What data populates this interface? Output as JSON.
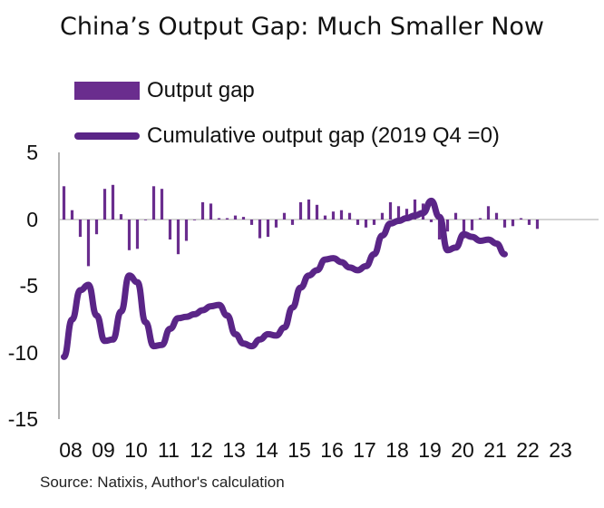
{
  "chart_data": {
    "type": "bar+line",
    "title": "China’s Output Gap: Much Smaller Now",
    "legend": [
      "Output gap",
      "Cumulative output gap (2019 Q4 =0)"
    ],
    "ylim": [
      -15,
      5
    ],
    "yticks": [
      "5",
      "0",
      "-5",
      "-10",
      "-15"
    ],
    "xticks": [
      "08",
      "09",
      "10",
      "11",
      "12",
      "13",
      "14",
      "15",
      "16",
      "17",
      "18",
      "19",
      "20",
      "21",
      "22",
      "23"
    ],
    "x_start_year": 2008,
    "series": [
      {
        "name": "Output gap",
        "type": "bar",
        "values": [
          2.5,
          0.7,
          -1.3,
          -3.5,
          -1.1,
          2.3,
          2.6,
          0.4,
          -2.3,
          -2.2,
          0,
          2.5,
          2.3,
          -1.5,
          -2.6,
          -1.6,
          0,
          1.3,
          1.2,
          0.1,
          0.1,
          0.3,
          0.2,
          -0.4,
          -1.4,
          -1.3,
          -0.6,
          0.5,
          -0.4,
          1.3,
          1.5,
          1.1,
          0.3,
          0.6,
          0.7,
          0.5,
          -0.4,
          -0.6,
          -0.4,
          0.5,
          1.3,
          1.0,
          0.8,
          1.5,
          1.2,
          -0.2,
          -1.5,
          -0.9,
          0.5,
          -1.4,
          -0.8,
          0.1,
          1.0,
          0.5,
          -0.6,
          -0.5,
          0.1,
          -0.4,
          -0.7
        ],
        "color": "#6a2d8e"
      },
      {
        "name": "Cumulative output gap (2019 Q4 =0)",
        "type": "line",
        "values": [
          -10.3,
          -7.5,
          -5.3,
          -4.9,
          -7.2,
          -9.1,
          -9.0,
          -6.9,
          -4.2,
          -4.7,
          -7.7,
          -9.5,
          -9.4,
          -8.2,
          -7.4,
          -7.3,
          -7.1,
          -6.8,
          -6.5,
          -6.4,
          -7.2,
          -8.6,
          -9.3,
          -9.5,
          -9.0,
          -8.6,
          -8.7,
          -8.1,
          -6.6,
          -5.1,
          -4.2,
          -3.8,
          -3.0,
          -2.9,
          -3.2,
          -3.6,
          -3.8,
          -3.5,
          -2.6,
          -1.2,
          -0.3,
          -0.1,
          0.1,
          0.3,
          0.5,
          1.4,
          0.2,
          -2.3,
          -2.1,
          -1.1,
          -1.3,
          -1.6,
          -1.5,
          -1.8,
          -2.6
        ],
        "color": "#5a2587"
      }
    ]
  },
  "source": "Source: Natixis, Author's calculation"
}
